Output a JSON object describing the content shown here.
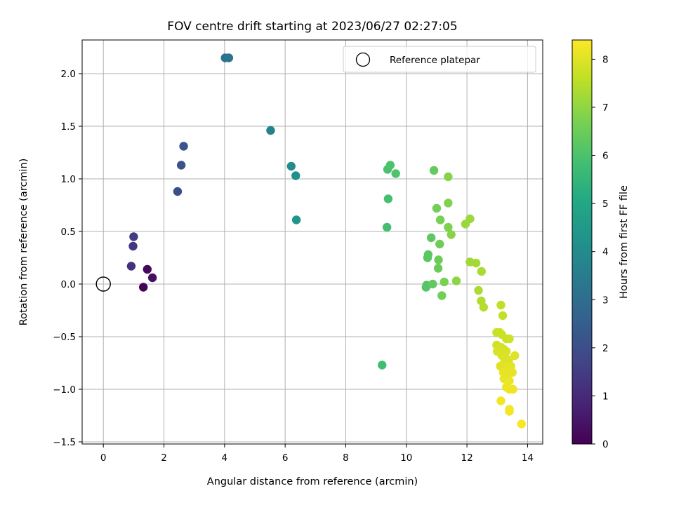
{
  "chart_data": {
    "type": "scatter",
    "title": "FOV centre drift starting at 2023/06/27 02:27:05",
    "xlabel": "Angular distance from reference (arcmin)",
    "ylabel": "Rotation from reference (arcmin)",
    "xlim": [
      -0.7,
      14.5
    ],
    "ylim": [
      -1.52,
      2.32
    ],
    "x_ticks": [
      0,
      2,
      4,
      6,
      8,
      10,
      12,
      14
    ],
    "x_tick_labels": [
      "0",
      "2",
      "4",
      "6",
      "8",
      "10",
      "12",
      "14"
    ],
    "y_ticks": [
      -1.5,
      -1.0,
      -0.5,
      0.0,
      0.5,
      1.0,
      1.5,
      2.0
    ],
    "y_tick_labels": [
      "−1.5",
      "−1.0",
      "−0.5",
      "0.0",
      "0.5",
      "1.0",
      "1.5",
      "2.0"
    ],
    "grid": true,
    "legend": {
      "position": "top-right",
      "label": "Reference platepar"
    },
    "reference_point": {
      "x": 0,
      "y": 0
    },
    "colorbar": {
      "label": "Hours from first FF file",
      "colormap": "viridis",
      "range": [
        0,
        8.4
      ],
      "ticks": [
        0,
        1,
        2,
        3,
        4,
        5,
        6,
        7,
        8
      ],
      "tick_labels": [
        "0",
        "1",
        "2",
        "3",
        "4",
        "5",
        "6",
        "7",
        "8"
      ]
    },
    "points": [
      {
        "x": 1.32,
        "y": -0.03,
        "c": 0.05
      },
      {
        "x": 1.45,
        "y": 0.14,
        "c": 0.2
      },
      {
        "x": 1.62,
        "y": 0.06,
        "c": 0.35
      },
      {
        "x": 0.92,
        "y": 0.17,
        "c": 1.2
      },
      {
        "x": 0.98,
        "y": 0.36,
        "c": 1.35
      },
      {
        "x": 1.0,
        "y": 0.45,
        "c": 1.5
      },
      {
        "x": 2.45,
        "y": 0.88,
        "c": 2.0
      },
      {
        "x": 2.57,
        "y": 1.13,
        "c": 2.1
      },
      {
        "x": 2.65,
        "y": 1.31,
        "c": 2.2
      },
      {
        "x": 4.02,
        "y": 2.15,
        "c": 3.1
      },
      {
        "x": 4.14,
        "y": 2.15,
        "c": 3.2
      },
      {
        "x": 5.52,
        "y": 1.46,
        "c": 3.65
      },
      {
        "x": 6.2,
        "y": 1.12,
        "c": 4.1
      },
      {
        "x": 6.35,
        "y": 1.03,
        "c": 4.2
      },
      {
        "x": 6.37,
        "y": 0.61,
        "c": 4.3
      },
      {
        "x": 9.2,
        "y": -0.77,
        "c": 5.8
      },
      {
        "x": 9.36,
        "y": 0.54,
        "c": 5.85
      },
      {
        "x": 9.4,
        "y": 0.81,
        "c": 5.9
      },
      {
        "x": 9.38,
        "y": 1.09,
        "c": 5.95
      },
      {
        "x": 9.47,
        "y": 1.13,
        "c": 6.0
      },
      {
        "x": 9.65,
        "y": 1.05,
        "c": 6.05
      },
      {
        "x": 10.65,
        "y": -0.03,
        "c": 6.1
      },
      {
        "x": 10.67,
        "y": -0.01,
        "c": 6.15
      },
      {
        "x": 10.7,
        "y": 0.25,
        "c": 6.2
      },
      {
        "x": 10.72,
        "y": 0.28,
        "c": 6.25
      },
      {
        "x": 10.82,
        "y": 0.44,
        "c": 6.3
      },
      {
        "x": 10.87,
        "y": 0.0,
        "c": 6.35
      },
      {
        "x": 10.91,
        "y": 1.08,
        "c": 6.4
      },
      {
        "x": 11.05,
        "y": 0.15,
        "c": 6.45
      },
      {
        "x": 11.06,
        "y": 0.23,
        "c": 6.5
      },
      {
        "x": 11.1,
        "y": 0.38,
        "c": 6.55
      },
      {
        "x": 11.17,
        "y": -0.11,
        "c": 6.6
      },
      {
        "x": 11.0,
        "y": 0.72,
        "c": 6.6
      },
      {
        "x": 11.12,
        "y": 0.61,
        "c": 6.65
      },
      {
        "x": 11.25,
        "y": 0.02,
        "c": 6.7
      },
      {
        "x": 11.38,
        "y": 0.54,
        "c": 6.75
      },
      {
        "x": 11.38,
        "y": 0.77,
        "c": 6.8
      },
      {
        "x": 11.38,
        "y": 1.02,
        "c": 6.85
      },
      {
        "x": 11.48,
        "y": 0.47,
        "c": 6.9
      },
      {
        "x": 11.65,
        "y": 0.03,
        "c": 6.95
      },
      {
        "x": 11.95,
        "y": 0.57,
        "c": 7.1
      },
      {
        "x": 12.1,
        "y": 0.62,
        "c": 7.15
      },
      {
        "x": 12.1,
        "y": 0.21,
        "c": 7.2
      },
      {
        "x": 12.3,
        "y": 0.2,
        "c": 7.25
      },
      {
        "x": 12.48,
        "y": 0.12,
        "c": 7.3
      },
      {
        "x": 12.38,
        "y": -0.06,
        "c": 7.35
      },
      {
        "x": 12.47,
        "y": -0.16,
        "c": 7.4
      },
      {
        "x": 12.55,
        "y": -0.22,
        "c": 7.45
      },
      {
        "x": 13.12,
        "y": -0.2,
        "c": 7.6
      },
      {
        "x": 13.18,
        "y": -0.3,
        "c": 7.65
      },
      {
        "x": 12.98,
        "y": -0.46,
        "c": 7.7
      },
      {
        "x": 13.08,
        "y": -0.46,
        "c": 7.72
      },
      {
        "x": 13.15,
        "y": -0.48,
        "c": 7.74
      },
      {
        "x": 13.3,
        "y": -0.52,
        "c": 7.76
      },
      {
        "x": 13.4,
        "y": -0.52,
        "c": 7.78
      },
      {
        "x": 12.98,
        "y": -0.58,
        "c": 7.8
      },
      {
        "x": 13.05,
        "y": -0.62,
        "c": 7.82
      },
      {
        "x": 13.12,
        "y": -0.6,
        "c": 7.84
      },
      {
        "x": 13.22,
        "y": -0.62,
        "c": 7.86
      },
      {
        "x": 13.3,
        "y": -0.64,
        "c": 7.88
      },
      {
        "x": 13.0,
        "y": -0.64,
        "c": 7.9
      },
      {
        "x": 13.15,
        "y": -0.68,
        "c": 7.92
      },
      {
        "x": 13.25,
        "y": -0.7,
        "c": 7.94
      },
      {
        "x": 13.38,
        "y": -0.72,
        "c": 7.96
      },
      {
        "x": 13.58,
        "y": -0.68,
        "c": 7.98
      },
      {
        "x": 13.2,
        "y": -0.76,
        "c": 8.0
      },
      {
        "x": 13.1,
        "y": -0.78,
        "c": 8.02
      },
      {
        "x": 13.3,
        "y": -0.8,
        "c": 8.04
      },
      {
        "x": 13.45,
        "y": -0.78,
        "c": 8.06
      },
      {
        "x": 13.2,
        "y": -0.84,
        "c": 8.08
      },
      {
        "x": 13.35,
        "y": -0.86,
        "c": 8.1
      },
      {
        "x": 13.5,
        "y": -0.84,
        "c": 8.12
      },
      {
        "x": 13.22,
        "y": -0.9,
        "c": 8.14
      },
      {
        "x": 13.4,
        "y": -0.92,
        "c": 8.16
      },
      {
        "x": 13.3,
        "y": -0.98,
        "c": 8.18
      },
      {
        "x": 13.4,
        "y": -1.0,
        "c": 8.2
      },
      {
        "x": 13.52,
        "y": -1.0,
        "c": 8.22
      },
      {
        "x": 13.12,
        "y": -1.11,
        "c": 8.25
      },
      {
        "x": 13.4,
        "y": -1.19,
        "c": 8.28
      },
      {
        "x": 13.4,
        "y": -1.21,
        "c": 8.3
      },
      {
        "x": 13.8,
        "y": -1.33,
        "c": 8.35
      }
    ]
  }
}
